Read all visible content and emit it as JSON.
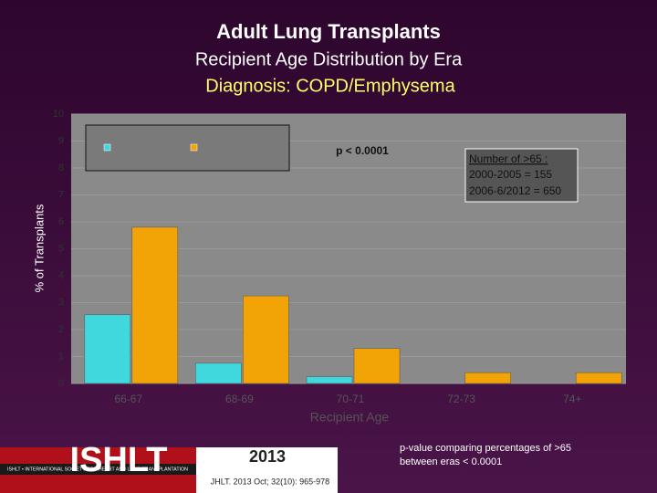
{
  "chart_data": {
    "type": "bar",
    "title": "Adult Lung Transplants",
    "subtitle": "Recipient Age Distribution by Era",
    "subtitle2": "Diagnosis: COPD/Emphysema",
    "x_label": "Recipient Age",
    "y_label": "% of Transplants",
    "categories": [
      "66-67",
      "68-69",
      "70-71",
      "72-73",
      "74+"
    ],
    "series": [
      {
        "color": "#3fd8dc",
        "values": [
          2.55,
          0.75,
          0.25,
          0,
          0
        ]
      },
      {
        "color": "#f2a406",
        "values": [
          5.8,
          3.25,
          1.3,
          0.4,
          0.4
        ]
      }
    ],
    "ylim": [
      0,
      10
    ],
    "yticks": [
      0,
      1,
      2,
      3,
      4,
      5,
      6,
      7,
      8,
      9,
      10
    ],
    "grid": true,
    "annotations": [
      "p < 0.0001",
      "Number of >65 :",
      "2000-2005 = 155",
      "2006-6/2012 = 650"
    ],
    "footnote": [
      "p-value comparing percentages of >65",
      "between eras < 0.0001"
    ]
  },
  "footer": {
    "logo": "ISHLT",
    "logo_tagline": "ISHLT • INTERNATIONAL SOCIETY FOR HEART AND LUNG TRANSPLANTATION",
    "year": "2013",
    "citation": "JHLT. 2013 Oct; 32(10): 965-978"
  }
}
